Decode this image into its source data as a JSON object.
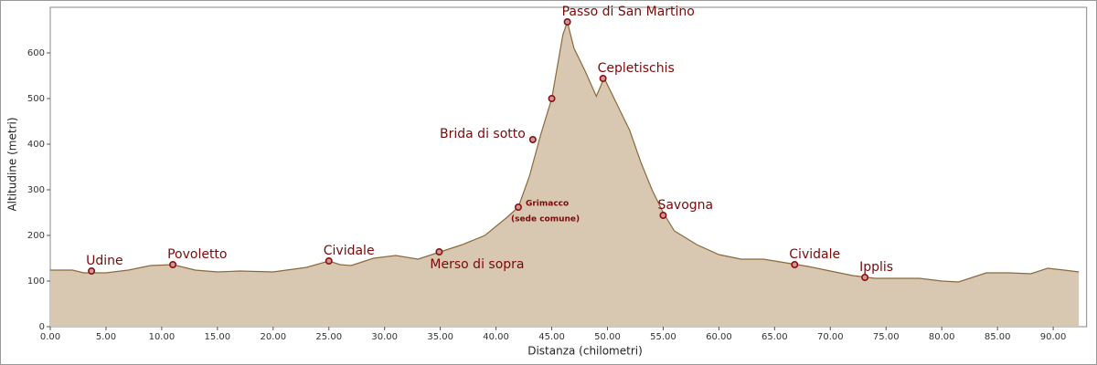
{
  "chart_data": {
    "type": "area",
    "xlabel": "Distanza (chilometri)",
    "ylabel": "Altitudine (metri)",
    "x": [
      0,
      2,
      3,
      5,
      7,
      9,
      11,
      13,
      15,
      17,
      20,
      23,
      25,
      26,
      27,
      29,
      31,
      33,
      35,
      37,
      39,
      41,
      42,
      43,
      44,
      45,
      46,
      46.4,
      47,
      48,
      49,
      49.7,
      51,
      52,
      53,
      54,
      55,
      56,
      58,
      60,
      62,
      64,
      66,
      68,
      70,
      72,
      74,
      76,
      78,
      80,
      81.5,
      83,
      84,
      86,
      88,
      89.5,
      91,
      92.3
    ],
    "series": [
      {
        "color": "#d8c7b1",
        "line_color": "#8a6a3c",
        "values": [
          124,
          124,
          118,
          118,
          124,
          134,
          136,
          124,
          120,
          122,
          120,
          130,
          144,
          136,
          134,
          150,
          156,
          148,
          164,
          180,
          200,
          240,
          262,
          330,
          420,
          500,
          640,
          668,
          610,
          560,
          505,
          545,
          480,
          430,
          360,
          300,
          250,
          210,
          180,
          158,
          148,
          148,
          140,
          132,
          122,
          112,
          106,
          106,
          106,
          100,
          98,
          110,
          118,
          118,
          116,
          128,
          124,
          120
        ]
      }
    ],
    "waypoints": {
      "color": "#8b1010",
      "x": [
        3.7,
        11,
        25,
        34.9,
        42,
        43.3,
        45,
        46.4,
        49.6,
        55,
        66.8,
        73.1
      ],
      "y": [
        122,
        136,
        144,
        164,
        262,
        410,
        500,
        668,
        544,
        244,
        136,
        108
      ],
      "labels": [
        "Udine",
        "Povoletto",
        "Cividale",
        "Merso di sopra",
        "Grimacco",
        "Brida di sotto",
        null,
        "Passo di San Martino",
        "Cepletischis",
        "Savogna",
        "Cividale",
        "Ipplis"
      ],
      "notes": [
        null,
        null,
        null,
        null,
        "(sede comune)",
        null,
        null,
        null,
        null,
        null,
        null,
        null
      ]
    },
    "xlim": [
      0,
      93
    ],
    "ylim": [
      0,
      700
    ],
    "xticks": [
      {
        "value": 0,
        "label": "0.00"
      },
      {
        "value": 5,
        "label": "5.00"
      },
      {
        "value": 10,
        "label": "10.00"
      },
      {
        "value": 15,
        "label": "15.00"
      },
      {
        "value": 20,
        "label": "20.00"
      },
      {
        "value": 25,
        "label": "25.00"
      },
      {
        "value": 30,
        "label": "30.00"
      },
      {
        "value": 35,
        "label": "35.00"
      },
      {
        "value": 40,
        "label": "40.00"
      },
      {
        "value": 45,
        "label": "45.00"
      },
      {
        "value": 50,
        "label": "50.00"
      },
      {
        "value": 55,
        "label": "55.00"
      },
      {
        "value": 60,
        "label": "60.00"
      },
      {
        "value": 65,
        "label": "65.00"
      },
      {
        "value": 70,
        "label": "70.00"
      },
      {
        "value": 75,
        "label": "75.00"
      },
      {
        "value": 80,
        "label": "80.00"
      },
      {
        "value": 85,
        "label": "85.00"
      },
      {
        "value": 90,
        "label": "90.00"
      }
    ],
    "yticks": [
      0,
      100,
      200,
      300,
      400,
      500,
      600
    ]
  }
}
